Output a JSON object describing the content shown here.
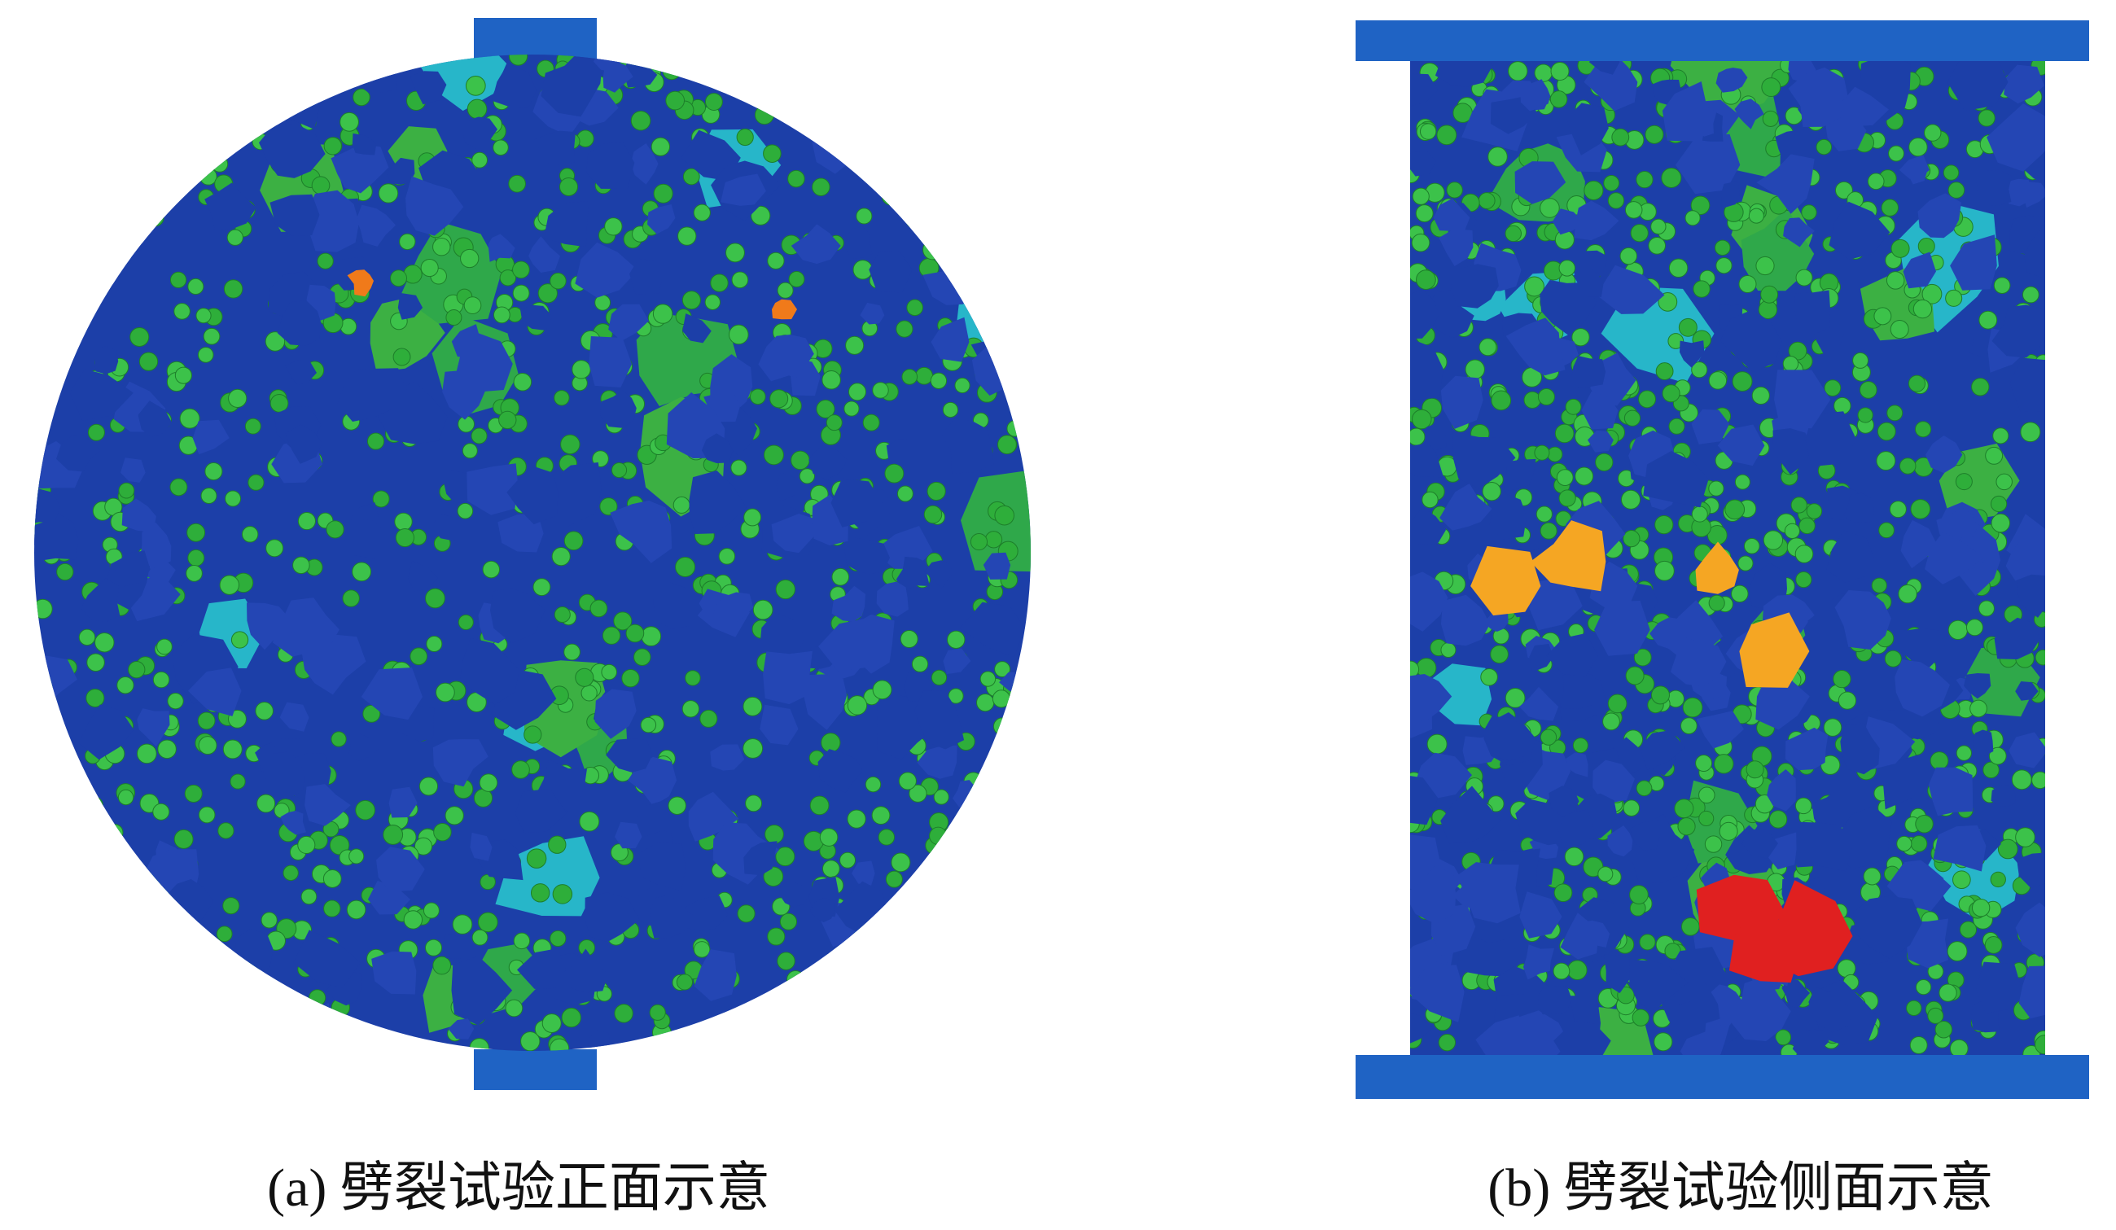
{
  "figure": {
    "panels": [
      {
        "caption": "(a) 劈裂试验正面示意"
      },
      {
        "caption": "(b) 劈裂试验侧面示意"
      }
    ]
  }
}
